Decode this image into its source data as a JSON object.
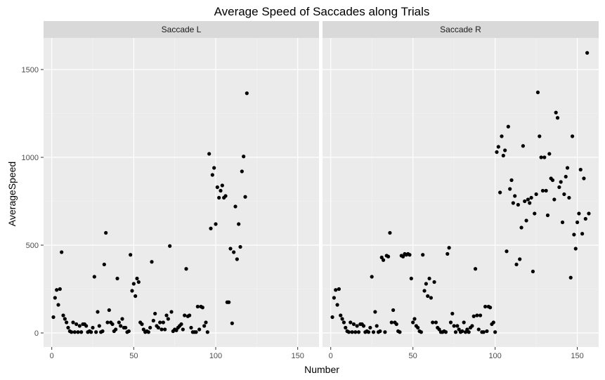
{
  "chart_data": {
    "type": "scatter",
    "title": "Average Speed of Saccades along Trials",
    "xlabel": "Number",
    "ylabel": "AverageSpeed",
    "xlim": [
      -5,
      163
    ],
    "ylim": [
      -80,
      1680
    ],
    "x_ticks": [
      0,
      50,
      100,
      150
    ],
    "y_ticks": [
      0,
      500,
      1000,
      1500
    ],
    "grid": true,
    "point_color": "#000000",
    "panel_background": "#ebebeb",
    "strip_background": "#d9d9d9",
    "panels": [
      {
        "name": "Saccade L",
        "points": [
          [
            1,
            90
          ],
          [
            2,
            200
          ],
          [
            3,
            245
          ],
          [
            4,
            160
          ],
          [
            5,
            250
          ],
          [
            6,
            460
          ],
          [
            7,
            100
          ],
          [
            8,
            80
          ],
          [
            9,
            60
          ],
          [
            10,
            30
          ],
          [
            11,
            10
          ],
          [
            12,
            5
          ],
          [
            13,
            60
          ],
          [
            14,
            5
          ],
          [
            15,
            50
          ],
          [
            16,
            5
          ],
          [
            17,
            40
          ],
          [
            18,
            5
          ],
          [
            19,
            50
          ],
          [
            20,
            50
          ],
          [
            21,
            40
          ],
          [
            22,
            5
          ],
          [
            23,
            10
          ],
          [
            24,
            5
          ],
          [
            25,
            30
          ],
          [
            26,
            320
          ],
          [
            27,
            5
          ],
          [
            28,
            120
          ],
          [
            29,
            40
          ],
          [
            30,
            5
          ],
          [
            31,
            10
          ],
          [
            32,
            390
          ],
          [
            33,
            570
          ],
          [
            34,
            60
          ],
          [
            35,
            130
          ],
          [
            36,
            60
          ],
          [
            37,
            50
          ],
          [
            38,
            10
          ],
          [
            39,
            20
          ],
          [
            40,
            310
          ],
          [
            41,
            60
          ],
          [
            42,
            40
          ],
          [
            43,
            80
          ],
          [
            44,
            30
          ],
          [
            45,
            30
          ],
          [
            46,
            5
          ],
          [
            47,
            10
          ],
          [
            48,
            445
          ],
          [
            49,
            240
          ],
          [
            50,
            280
          ],
          [
            51,
            210
          ],
          [
            52,
            310
          ],
          [
            53,
            290
          ],
          [
            54,
            60
          ],
          [
            55,
            50
          ],
          [
            56,
            20
          ],
          [
            57,
            5
          ],
          [
            58,
            10
          ],
          [
            59,
            5
          ],
          [
            60,
            30
          ],
          [
            61,
            405
          ],
          [
            62,
            70
          ],
          [
            63,
            110
          ],
          [
            64,
            40
          ],
          [
            65,
            30
          ],
          [
            66,
            60
          ],
          [
            67,
            20
          ],
          [
            68,
            60
          ],
          [
            69,
            20
          ],
          [
            70,
            100
          ],
          [
            71,
            80
          ],
          [
            72,
            495
          ],
          [
            73,
            120
          ],
          [
            74,
            10
          ],
          [
            75,
            20
          ],
          [
            76,
            15
          ],
          [
            77,
            30
          ],
          [
            78,
            40
          ],
          [
            79,
            50
          ],
          [
            80,
            20
          ],
          [
            81,
            100
          ],
          [
            82,
            365
          ],
          [
            83,
            95
          ],
          [
            84,
            100
          ],
          [
            85,
            30
          ],
          [
            86,
            5
          ],
          [
            87,
            5
          ],
          [
            88,
            5
          ],
          [
            89,
            150
          ],
          [
            90,
            20
          ],
          [
            91,
            150
          ],
          [
            92,
            145
          ],
          [
            93,
            40
          ],
          [
            94,
            60
          ],
          [
            95,
            5
          ],
          [
            96,
            1020
          ],
          [
            97,
            595
          ],
          [
            98,
            900
          ],
          [
            99,
            940
          ],
          [
            100,
            620
          ],
          [
            101,
            830
          ],
          [
            102,
            770
          ],
          [
            103,
            810
          ],
          [
            104,
            840
          ],
          [
            105,
            770
          ],
          [
            106,
            780
          ],
          [
            107,
            175
          ],
          [
            108,
            175
          ],
          [
            109,
            480
          ],
          [
            110,
            55
          ],
          [
            111,
            460
          ],
          [
            112,
            720
          ],
          [
            113,
            420
          ],
          [
            114,
            620
          ],
          [
            115,
            490
          ],
          [
            116,
            920
          ],
          [
            117,
            1005
          ],
          [
            118,
            775
          ],
          [
            119,
            1365
          ]
        ]
      },
      {
        "name": "Saccade R",
        "points": [
          [
            1,
            90
          ],
          [
            2,
            200
          ],
          [
            3,
            245
          ],
          [
            4,
            160
          ],
          [
            5,
            250
          ],
          [
            6,
            100
          ],
          [
            7,
            80
          ],
          [
            8,
            60
          ],
          [
            9,
            30
          ],
          [
            10,
            10
          ],
          [
            11,
            5
          ],
          [
            12,
            60
          ],
          [
            13,
            5
          ],
          [
            14,
            50
          ],
          [
            15,
            5
          ],
          [
            16,
            40
          ],
          [
            17,
            5
          ],
          [
            18,
            50
          ],
          [
            19,
            50
          ],
          [
            20,
            40
          ],
          [
            21,
            5
          ],
          [
            22,
            10
          ],
          [
            23,
            5
          ],
          [
            24,
            30
          ],
          [
            25,
            320
          ],
          [
            26,
            5
          ],
          [
            27,
            120
          ],
          [
            28,
            40
          ],
          [
            29,
            5
          ],
          [
            30,
            10
          ],
          [
            31,
            430
          ],
          [
            32,
            415
          ],
          [
            33,
            5
          ],
          [
            34,
            440
          ],
          [
            35,
            435
          ],
          [
            36,
            570
          ],
          [
            37,
            60
          ],
          [
            38,
            130
          ],
          [
            39,
            60
          ],
          [
            40,
            50
          ],
          [
            41,
            10
          ],
          [
            42,
            5
          ],
          [
            43,
            440
          ],
          [
            44,
            435
          ],
          [
            45,
            450
          ],
          [
            46,
            445
          ],
          [
            47,
            450
          ],
          [
            48,
            445
          ],
          [
            49,
            310
          ],
          [
            50,
            60
          ],
          [
            51,
            80
          ],
          [
            52,
            40
          ],
          [
            53,
            30
          ],
          [
            54,
            10
          ],
          [
            55,
            5
          ],
          [
            56,
            445
          ],
          [
            57,
            240
          ],
          [
            58,
            280
          ],
          [
            59,
            210
          ],
          [
            60,
            310
          ],
          [
            61,
            200
          ],
          [
            62,
            60
          ],
          [
            63,
            290
          ],
          [
            64,
            60
          ],
          [
            65,
            30
          ],
          [
            66,
            20
          ],
          [
            67,
            5
          ],
          [
            68,
            5
          ],
          [
            69,
            10
          ],
          [
            70,
            5
          ],
          [
            71,
            450
          ],
          [
            72,
            485
          ],
          [
            73,
            60
          ],
          [
            74,
            110
          ],
          [
            75,
            40
          ],
          [
            76,
            5
          ],
          [
            77,
            40
          ],
          [
            78,
            20
          ],
          [
            79,
            5
          ],
          [
            80,
            10
          ],
          [
            81,
            60
          ],
          [
            82,
            5
          ],
          [
            83,
            20
          ],
          [
            84,
            5
          ],
          [
            85,
            30
          ],
          [
            86,
            40
          ],
          [
            87,
            95
          ],
          [
            88,
            365
          ],
          [
            89,
            100
          ],
          [
            90,
            20
          ],
          [
            91,
            100
          ],
          [
            92,
            5
          ],
          [
            93,
            5
          ],
          [
            94,
            150
          ],
          [
            95,
            10
          ],
          [
            96,
            150
          ],
          [
            97,
            145
          ],
          [
            98,
            50
          ],
          [
            99,
            60
          ],
          [
            100,
            5
          ],
          [
            101,
            1030
          ],
          [
            102,
            1060
          ],
          [
            103,
            800
          ],
          [
            104,
            1120
          ],
          [
            105,
            1010
          ],
          [
            106,
            1040
          ],
          [
            107,
            465
          ],
          [
            108,
            1175
          ],
          [
            109,
            820
          ],
          [
            110,
            870
          ],
          [
            111,
            740
          ],
          [
            112,
            780
          ],
          [
            113,
            390
          ],
          [
            114,
            730
          ],
          [
            115,
            420
          ],
          [
            116,
            600
          ],
          [
            117,
            1065
          ],
          [
            118,
            750
          ],
          [
            119,
            640
          ],
          [
            120,
            760
          ],
          [
            121,
            740
          ],
          [
            122,
            770
          ],
          [
            123,
            350
          ],
          [
            124,
            680
          ],
          [
            125,
            790
          ],
          [
            126,
            1370
          ],
          [
            127,
            1120
          ],
          [
            128,
            1000
          ],
          [
            129,
            810
          ],
          [
            130,
            1000
          ],
          [
            131,
            810
          ],
          [
            132,
            670
          ],
          [
            133,
            1020
          ],
          [
            134,
            880
          ],
          [
            135,
            870
          ],
          [
            136,
            760
          ],
          [
            137,
            1255
          ],
          [
            138,
            1225
          ],
          [
            139,
            830
          ],
          [
            140,
            860
          ],
          [
            141,
            630
          ],
          [
            142,
            790
          ],
          [
            143,
            890
          ],
          [
            144,
            940
          ],
          [
            145,
            770
          ],
          [
            146,
            315
          ],
          [
            147,
            1120
          ],
          [
            148,
            560
          ],
          [
            149,
            480
          ],
          [
            150,
            630
          ],
          [
            151,
            680
          ],
          [
            152,
            930
          ],
          [
            153,
            565
          ],
          [
            154,
            880
          ],
          [
            155,
            650
          ],
          [
            156,
            1595
          ],
          [
            157,
            680
          ]
        ]
      }
    ]
  }
}
